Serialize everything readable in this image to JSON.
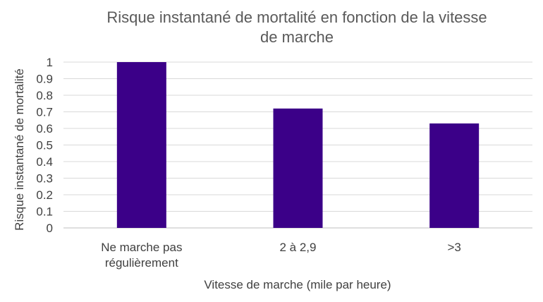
{
  "chart_data": {
    "type": "bar",
    "title_lines": [
      "Risque instantané de mortalité en fonction de la vitesse",
      "de marche"
    ],
    "xlabel": "Vitesse de marche (mile par heure)",
    "ylabel": "Risque instantané de mortalité",
    "categories": [
      [
        "Ne marche pas",
        "régulièrement"
      ],
      [
        "2 à 2,9"
      ],
      [
        ">3"
      ]
    ],
    "values": [
      1,
      0.72,
      0.63
    ],
    "ylim": [
      0,
      1
    ],
    "yticks": [
      "0",
      "0.1",
      "0.2",
      "0.3",
      "0.4",
      "0.5",
      "0.6",
      "0.7",
      "0.8",
      "0.9",
      "1"
    ],
    "grid": true,
    "legend": "none",
    "bar_color": "#3b0088"
  }
}
